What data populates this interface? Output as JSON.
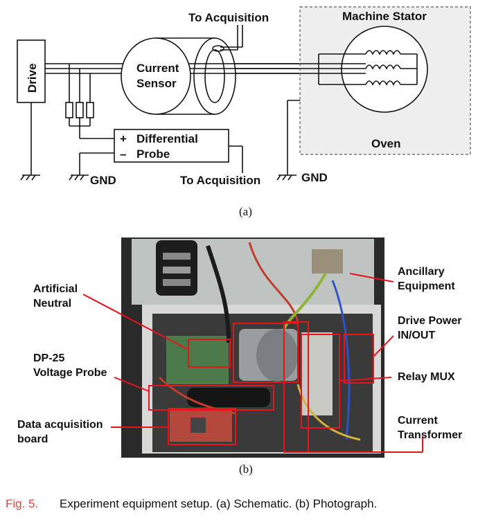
{
  "schematic": {
    "to_acquisition_top": "To Acquisition",
    "drive": "Drive",
    "current_sensor_line1": "Current",
    "current_sensor_line2": "Sensor",
    "machine_stator": "Machine Stator",
    "oven": "Oven",
    "differential_plus": "+",
    "differential_line1": "Differential",
    "differential_minus": "–",
    "differential_line2": "Probe",
    "gnd_left": "GND",
    "gnd_right": "GND",
    "to_acquisition_bottom": "To Acquisition",
    "sublabel": "(a)"
  },
  "photo": {
    "labels": {
      "artificial_neutral_1": "Artificial",
      "artificial_neutral_2": "Neutral",
      "dp25_1": "DP-25",
      "dp25_2": "Voltage Probe",
      "daq_1": "Data acquisition",
      "daq_2": "board",
      "ancillary_1": "Ancillary",
      "ancillary_2": "Equipment",
      "drive_power_1": "Drive Power",
      "drive_power_2": "IN/OUT",
      "relay_mux": "Relay MUX",
      "current_transformer_1": "Current",
      "current_transformer_2": "Transformer"
    },
    "annotation_color": "#e8141b",
    "sublabel": "(b)"
  },
  "caption": {
    "figure_number": "Fig. 5.",
    "text": "Experiment equipment setup. (a) Schematic. (b) Photograph.",
    "figure_number_color": "#e0483f"
  }
}
